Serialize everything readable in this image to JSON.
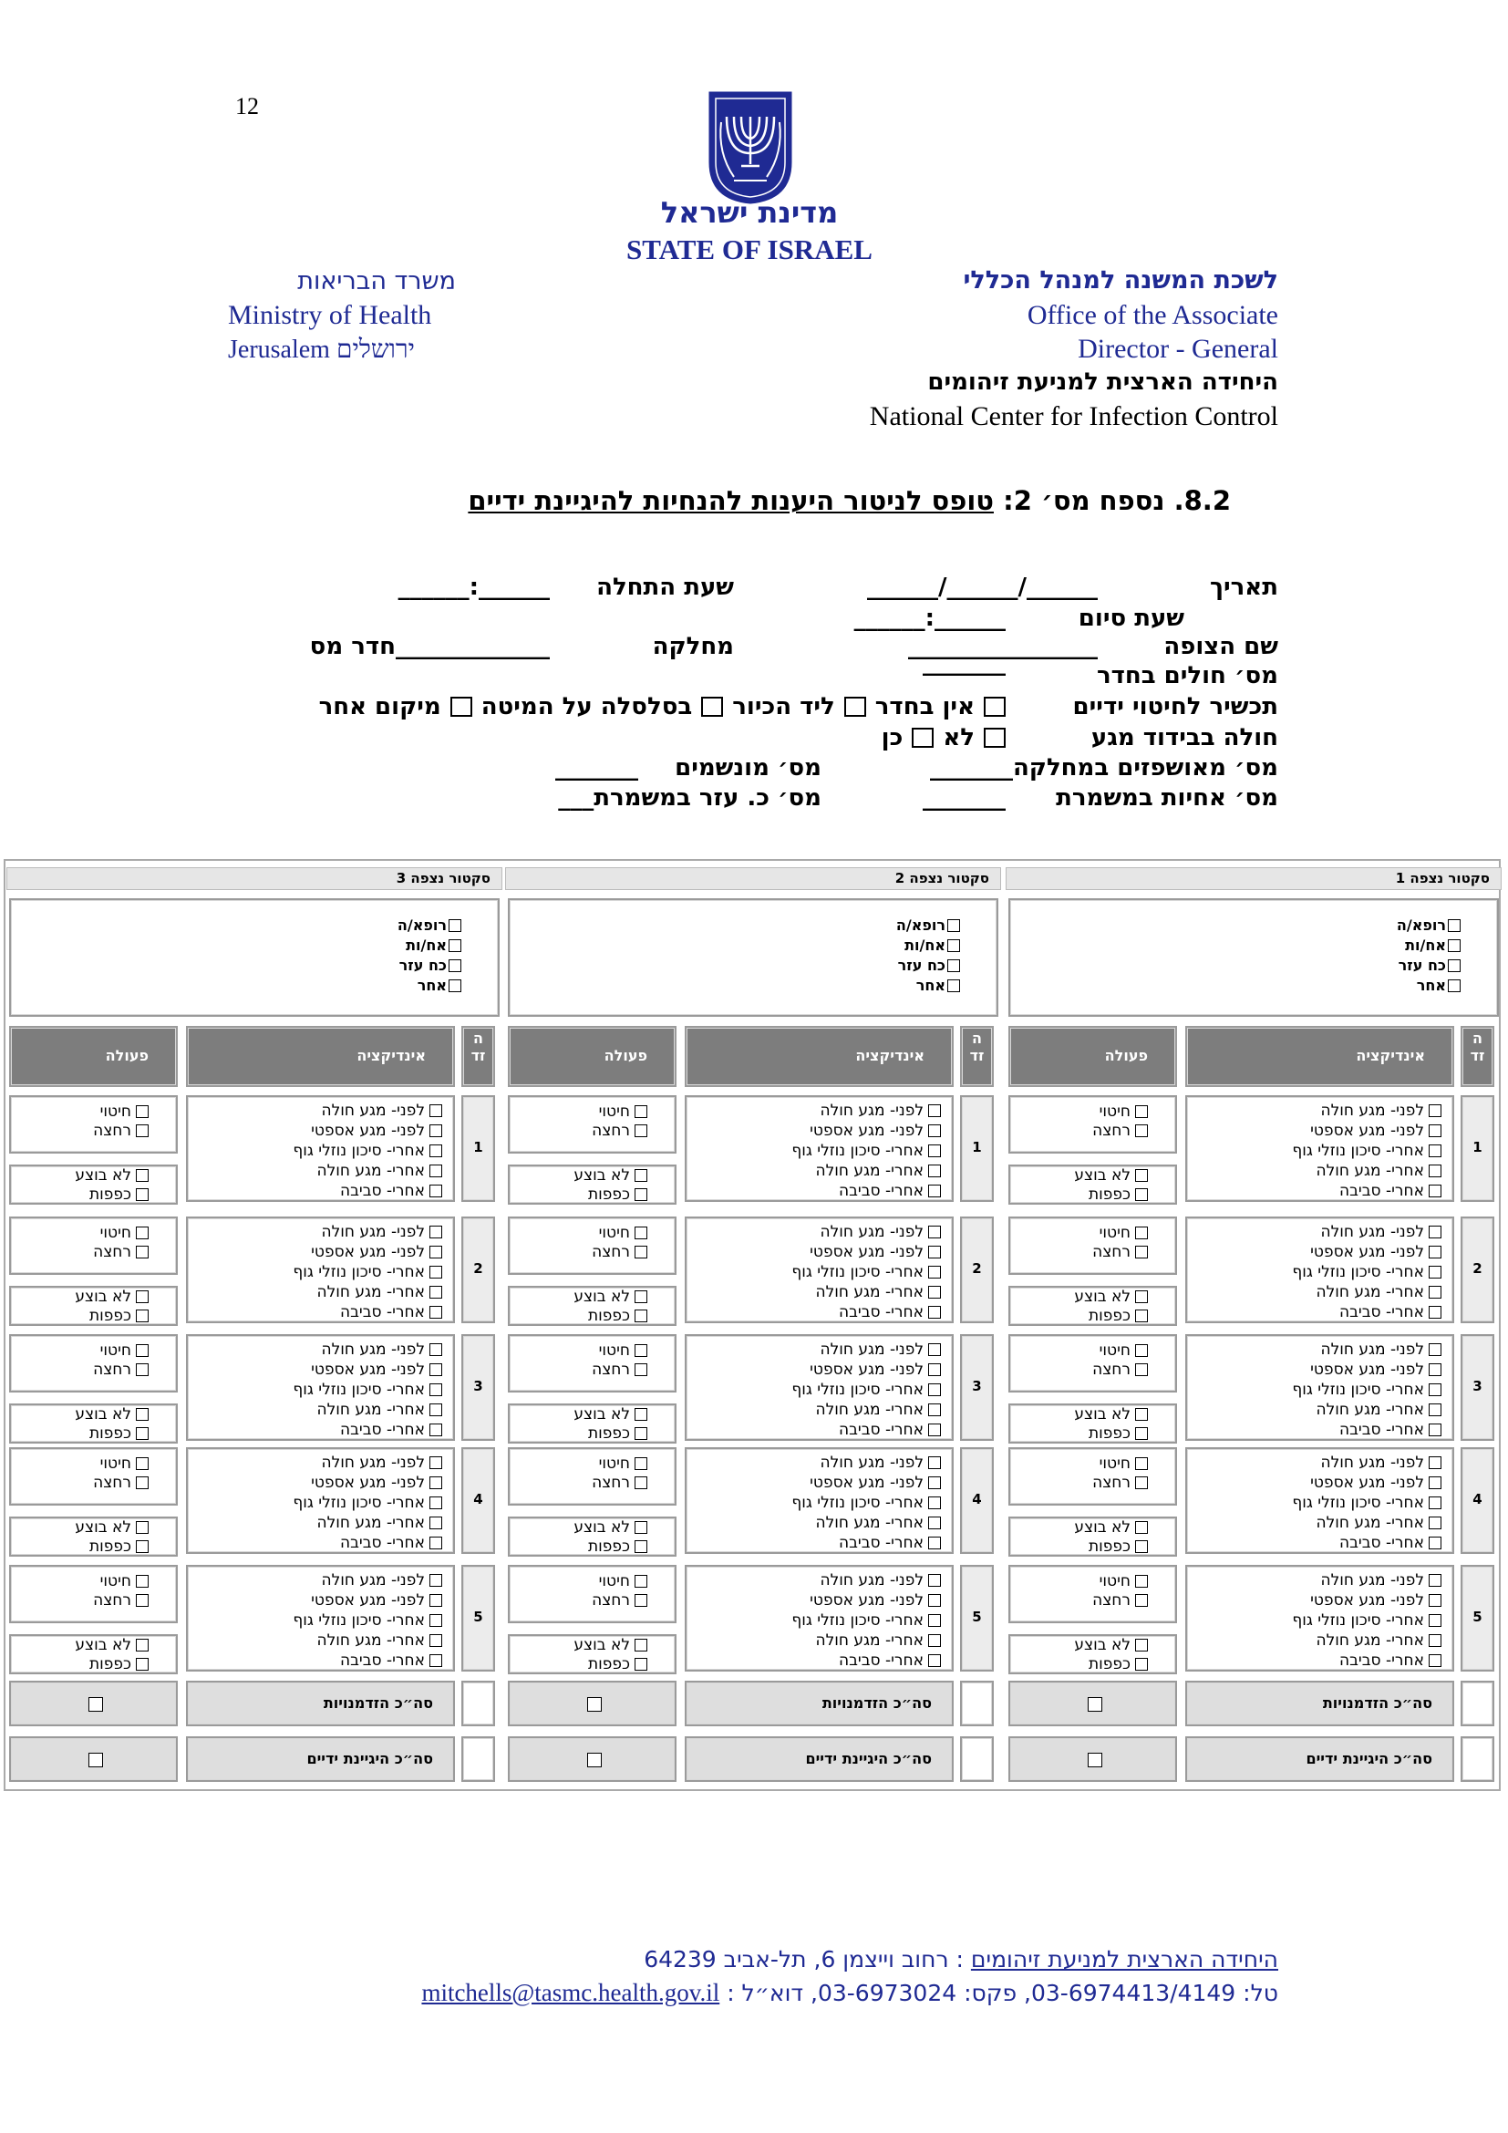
{
  "page_number": "12",
  "header": {
    "state_he": "מדינת ישראל",
    "state_en": "STATE OF ISRAEL",
    "right": [
      "לשכת המשנה למנהל הכללי",
      "Office of the Associate",
      "Director - General",
      "היחידה הארצית למניעת זיהומים",
      "National Center for Infection Control"
    ],
    "left": [
      "משרד הבריאות",
      "Ministry of Health",
      "Jerusalem  ירושלים"
    ]
  },
  "form_title": {
    "number": "8.2. נספח מס׳ 2:",
    "text": "טופס לניטור היענות להנחיות להיגיינת ידיים"
  },
  "fields": {
    "date": "תאריך",
    "date_blank": "______/______/______",
    "start": "שעת התחלה",
    "start_blank": "______:______",
    "end": "שעת סיום",
    "end_blank": "______:______",
    "observer": "שם הצופה",
    "observer_blank": "________________",
    "ward": "מחלקה",
    "room": "_____________חדר מס",
    "patients": "מס׳ חולים בחדר",
    "patients_blank": "_______",
    "disinfectant": "תכשיר לחיטוי ידיים",
    "disinfectant_options": [
      "אין בחדר",
      "ליד הכיור",
      "בסלסלה על המיטה",
      "מיקום אחר"
    ],
    "isolation": "חולה בבידוד מגע",
    "isolation_options": [
      "לא",
      "כן"
    ],
    "admitted": "מס׳ מאושפזים במחלקה_______",
    "ventilated": "מס׳ מונשמים",
    "ventilated_blank": "_______",
    "nurses": "מס׳ אחיות במשמרת",
    "nurses_blank": "_______",
    "aides": "מס׳ כ. עזר במשמרת___"
  },
  "table": {
    "sectors": [
      "סקטור נצפה 1",
      "סקטור נצפה 2",
      "סקטור נצפה 3"
    ],
    "staff": [
      "רופא/ה",
      "אח/ות",
      "כח עזר",
      "אחר"
    ],
    "columns": {
      "opportunity": "הזד",
      "indication": "אינדיקציה",
      "action": "פעולה"
    },
    "rows": [
      1,
      2,
      3,
      4,
      5
    ],
    "indications": [
      "לפני- מגע חולה",
      "לפני- מגע אספטי",
      "אחרי- סיכון נוזלי גוף",
      "אחרי- מגע חולה",
      "אחרי- סביבה"
    ],
    "actions": [
      "חיטוי",
      "רחצה",
      "לא בוצע",
      "כפפות"
    ],
    "totals": [
      "סה״כ הזדמנויות",
      "סה״כ היגיינת ידיים"
    ]
  },
  "footer": {
    "unit": "היחידה הארצית למניעת זיהומים",
    "address": ": רחוב וייצמן 6, תל-אביב 64239",
    "contacts": "טל: 03-6974413/4149, פקס: 03-6973024, דוא״ל :",
    "email": "mitchells@tasmc.health.gov.il"
  }
}
